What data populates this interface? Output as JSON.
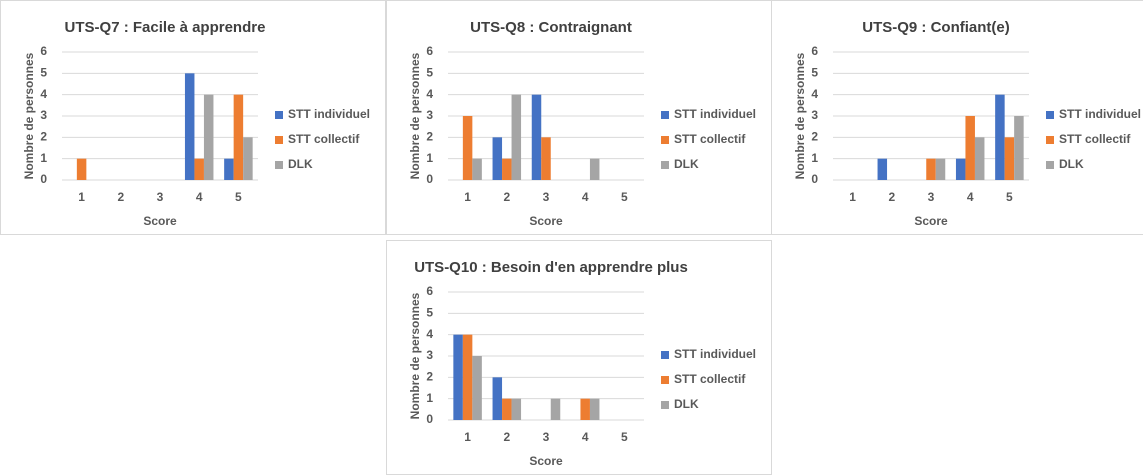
{
  "chart_data": [
    {
      "type": "bar",
      "title": "UTS-Q7 : Facile à apprendre",
      "x_label": "Score",
      "y_label": "Nombre de personnes",
      "categories": [
        "1",
        "2",
        "3",
        "4",
        "5"
      ],
      "series": [
        {
          "name": "STT individuel",
          "color": "#4472c4",
          "values": [
            null,
            null,
            null,
            5,
            1
          ]
        },
        {
          "name": "STT collectif",
          "color": "#ed7d31",
          "values": [
            1,
            null,
            null,
            1,
            4
          ]
        },
        {
          "name": "DLK",
          "color": "#a5a5a5",
          "values": [
            null,
            null,
            null,
            4,
            2
          ]
        }
      ],
      "ylim": [
        0,
        6
      ],
      "yticks": [
        0,
        1,
        2,
        3,
        4,
        5,
        6
      ],
      "grid": true,
      "legend": "right"
    },
    {
      "type": "bar",
      "title": "UTS-Q8 : Contraignant",
      "x_label": "Score",
      "y_label": "Nombre de personnes",
      "categories": [
        "1",
        "2",
        "3",
        "4",
        "5"
      ],
      "series": [
        {
          "name": "STT individuel",
          "color": "#4472c4",
          "values": [
            null,
            2,
            4,
            null,
            null
          ]
        },
        {
          "name": "STT collectif",
          "color": "#ed7d31",
          "values": [
            3,
            1,
            2,
            null,
            null
          ]
        },
        {
          "name": "DLK",
          "color": "#a5a5a5",
          "values": [
            1,
            4,
            null,
            1,
            null
          ]
        }
      ],
      "ylim": [
        0,
        6
      ],
      "yticks": [
        0,
        1,
        2,
        3,
        4,
        5,
        6
      ],
      "grid": true,
      "legend": "right"
    },
    {
      "type": "bar",
      "title": "UTS-Q9 : Confiant(e)",
      "x_label": "Score",
      "y_label": "Nombre de personnes",
      "categories": [
        "1",
        "2",
        "3",
        "4",
        "5"
      ],
      "series": [
        {
          "name": "STT individuel",
          "color": "#4472c4",
          "values": [
            null,
            1,
            null,
            1,
            4
          ]
        },
        {
          "name": "STT collectif",
          "color": "#ed7d31",
          "values": [
            null,
            null,
            1,
            3,
            2
          ]
        },
        {
          "name": "DLK",
          "color": "#a5a5a5",
          "values": [
            null,
            null,
            1,
            2,
            3
          ]
        }
      ],
      "ylim": [
        0,
        6
      ],
      "yticks": [
        0,
        1,
        2,
        3,
        4,
        5,
        6
      ],
      "grid": true,
      "legend": "right"
    },
    {
      "type": "bar",
      "title": "UTS-Q10 : Besoin d'en apprendre plus",
      "x_label": "Score",
      "y_label": "Nombre de personnes",
      "categories": [
        "1",
        "2",
        "3",
        "4",
        "5"
      ],
      "series": [
        {
          "name": "STT individuel",
          "color": "#4472c4",
          "values": [
            4,
            2,
            null,
            null,
            null
          ]
        },
        {
          "name": "STT collectif",
          "color": "#ed7d31",
          "values": [
            4,
            1,
            null,
            1,
            null
          ]
        },
        {
          "name": "DLK",
          "color": "#a5a5a5",
          "values": [
            3,
            1,
            1,
            1,
            null
          ]
        }
      ],
      "ylim": [
        0,
        6
      ],
      "yticks": [
        0,
        1,
        2,
        3,
        4,
        5,
        6
      ],
      "grid": true,
      "legend": "right"
    }
  ]
}
